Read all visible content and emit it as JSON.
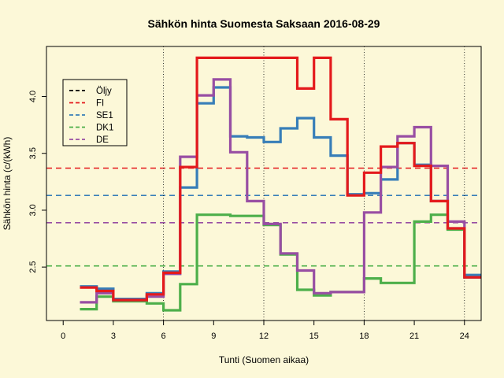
{
  "chart_data": {
    "type": "line",
    "title": "Sähkön hinta Suomesta Saksaan 2016-08-29",
    "xlabel": "Tunti (Suomen aikaa)",
    "ylabel": "Sähkön hinta (c/(kWh)",
    "xlim": [
      -1,
      25
    ],
    "ylim": [
      2.03,
      4.44
    ],
    "xticks": [
      0,
      3,
      6,
      9,
      12,
      15,
      18,
      21,
      24
    ],
    "xtick_labels": [
      "0",
      "3",
      "6",
      "9",
      "12",
      "15",
      "18",
      "21",
      "24"
    ],
    "yticks": [
      2.5,
      3.0,
      3.5,
      4.0
    ],
    "ytick_labels": [
      "2.5",
      "3.0",
      "3.5",
      "4.0"
    ],
    "vlines": [
      6,
      12,
      18,
      24
    ],
    "legend_position": "top-left",
    "legend": [
      {
        "label": "Öljy",
        "color": "#000000"
      },
      {
        "label": "FI",
        "color": "#e41a1c"
      },
      {
        "label": "SE1",
        "color": "#377eb8"
      },
      {
        "label": "DK1",
        "color": "#4daf4a"
      },
      {
        "label": "DE",
        "color": "#984ea3"
      }
    ],
    "reference_lines": [
      {
        "name": "FI",
        "color": "#e41a1c",
        "y": 3.37
      },
      {
        "name": "SE1",
        "color": "#377eb8",
        "y": 3.13
      },
      {
        "name": "DE",
        "color": "#984ea3",
        "y": 2.89
      },
      {
        "name": "DK1",
        "color": "#4daf4a",
        "y": 2.51
      }
    ],
    "x": [
      1,
      2,
      3,
      4,
      5,
      6,
      7,
      8,
      9,
      10,
      11,
      12,
      13,
      14,
      15,
      16,
      17,
      18,
      19,
      20,
      21,
      22,
      23,
      24
    ],
    "series": [
      {
        "name": "SE1",
        "color": "#377eb8",
        "values": [
          2.33,
          2.31,
          2.22,
          2.22,
          2.27,
          2.46,
          3.2,
          3.94,
          4.08,
          3.65,
          3.64,
          3.6,
          3.72,
          3.81,
          3.64,
          3.48,
          3.14,
          3.15,
          3.27,
          3.59,
          3.4,
          3.08,
          2.84,
          2.43
        ]
      },
      {
        "name": "DK1",
        "color": "#4daf4a",
        "values": [
          2.13,
          2.24,
          2.2,
          2.2,
          2.18,
          2.12,
          2.35,
          2.96,
          2.96,
          2.95,
          2.95,
          2.87,
          2.61,
          2.3,
          2.25,
          2.28,
          2.28,
          2.4,
          2.36,
          2.36,
          2.9,
          2.96,
          2.83,
          2.41
        ]
      },
      {
        "name": "DE",
        "color": "#984ea3",
        "values": [
          2.19,
          2.27,
          2.21,
          2.21,
          2.24,
          2.44,
          3.47,
          4.01,
          4.15,
          3.51,
          3.08,
          2.88,
          2.62,
          2.47,
          2.27,
          2.28,
          2.28,
          2.98,
          3.38,
          3.65,
          3.73,
          3.39,
          2.9,
          2.41
        ]
      },
      {
        "name": "FI",
        "color": "#e41a1c",
        "values": [
          2.32,
          2.29,
          2.21,
          2.21,
          2.26,
          2.45,
          3.38,
          4.34,
          4.34,
          4.34,
          4.34,
          4.34,
          4.34,
          4.07,
          4.34,
          3.8,
          3.13,
          3.33,
          3.56,
          3.59,
          3.39,
          3.08,
          2.84,
          2.41
        ]
      }
    ]
  }
}
